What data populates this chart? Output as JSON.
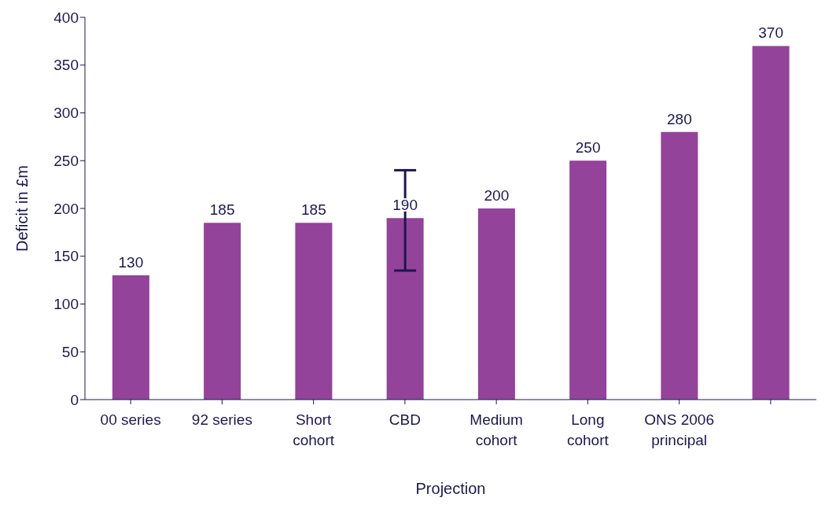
{
  "chart_data": {
    "type": "bar",
    "xlabel": "Projection",
    "ylabel": "Deficit in £m",
    "categories": [
      "00 series",
      "92 series",
      "Short cohort",
      "CBD",
      "Medium cohort",
      "Long cohort",
      "ONS 2006 principal",
      null
    ],
    "values": [
      130,
      185,
      185,
      190,
      200,
      250,
      280,
      370
    ],
    "errors": [
      null,
      null,
      null,
      [
        135,
        240
      ],
      null,
      null,
      null,
      null
    ],
    "color": "#93439a",
    "ylim": [
      0,
      400
    ],
    "yticks": [
      0,
      50,
      100,
      150,
      200,
      250,
      300,
      350,
      400
    ],
    "data_labels": true,
    "grid": false,
    "legend": false
  }
}
